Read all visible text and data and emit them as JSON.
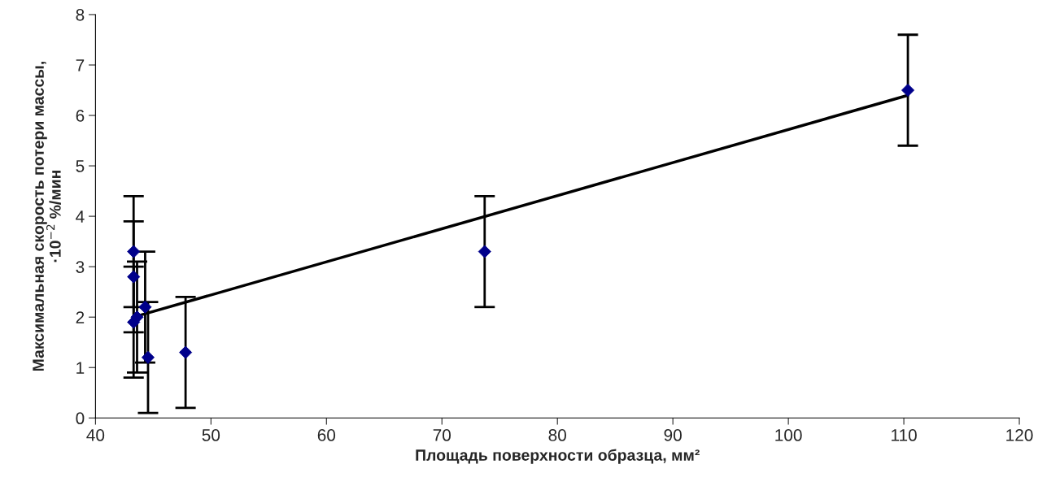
{
  "chart_data": {
    "type": "scatter",
    "xlabel": "Площадь поверхности образца, мм²",
    "ylabel": "Максимальная скорость потери массы,\n·10$^{−2}$ %/мин",
    "x": [
      43.3,
      43.3,
      43.3,
      43.6,
      44.3,
      44.55,
      47.8,
      73.7,
      110.35
    ],
    "series": [
      {
        "marker": "diamond",
        "color": "#00008b",
        "values": [
          3.3,
          2.8,
          1.9,
          2.0,
          2.2,
          1.2,
          1.3,
          3.3,
          6.5
        ],
        "errors": [
          1.1,
          1.1,
          1.1,
          1.1,
          1.1,
          1.1,
          1.1,
          1.1,
          1.1
        ]
      },
      {
        "type": "line",
        "marker": "none",
        "color": "#000000",
        "x": [
          43.3,
          110.35
        ],
        "values": [
          2.0,
          6.4
        ]
      }
    ],
    "xlim": [
      40,
      120
    ],
    "xticks": [
      40,
      50,
      60,
      70,
      80,
      90,
      100,
      110,
      120
    ],
    "ylim": [
      0,
      8
    ],
    "yticks": [
      0,
      1,
      2,
      3,
      4,
      5,
      6,
      7,
      8
    ],
    "grid": false,
    "legend": false
  }
}
